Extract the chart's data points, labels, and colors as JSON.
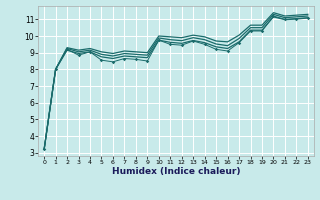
{
  "xlabel": "Humidex (Indice chaleur)",
  "bg_color": "#c8eaea",
  "grid_color": "#ffffff",
  "line_color": "#1a6b6b",
  "xlim": [
    -0.5,
    23.5
  ],
  "ylim": [
    2.8,
    11.8
  ],
  "yticks": [
    3,
    4,
    5,
    6,
    7,
    8,
    9,
    10,
    11
  ],
  "xticks": [
    0,
    1,
    2,
    3,
    4,
    5,
    6,
    7,
    8,
    9,
    10,
    11,
    12,
    13,
    14,
    15,
    16,
    17,
    18,
    19,
    20,
    21,
    22,
    23
  ],
  "jagged_x": [
    0,
    1,
    2,
    3,
    4,
    5,
    6,
    7,
    8,
    9,
    10,
    11,
    12,
    13,
    14,
    15,
    16,
    17,
    18,
    19,
    20,
    21,
    22,
    23
  ],
  "jagged_y": [
    3.2,
    8.0,
    9.2,
    8.85,
    9.05,
    8.55,
    8.45,
    8.65,
    8.6,
    8.5,
    9.75,
    9.5,
    9.45,
    9.7,
    9.5,
    9.2,
    9.1,
    9.6,
    10.3,
    10.3,
    11.2,
    11.0,
    11.05,
    11.1
  ],
  "smooth_upper_x": [
    0,
    1,
    2,
    3,
    4,
    5,
    6,
    7,
    8,
    9,
    10,
    11,
    12,
    13,
    14,
    15,
    16,
    17,
    18,
    19,
    20,
    21,
    22,
    23
  ],
  "smooth_upper_y": [
    3.2,
    8.0,
    9.3,
    9.15,
    9.25,
    9.05,
    8.95,
    9.1,
    9.05,
    9.0,
    10.0,
    9.95,
    9.9,
    10.05,
    9.95,
    9.7,
    9.65,
    10.05,
    10.65,
    10.65,
    11.4,
    11.2,
    11.25,
    11.3
  ],
  "smooth_mid_x": [
    0,
    1,
    2,
    3,
    4,
    5,
    6,
    7,
    8,
    9,
    10,
    11,
    12,
    13,
    14,
    15,
    16,
    17,
    18,
    19,
    20,
    21,
    22,
    23
  ],
  "smooth_mid_y": [
    3.2,
    8.0,
    9.25,
    9.05,
    9.15,
    8.9,
    8.8,
    8.95,
    8.9,
    8.85,
    9.88,
    9.78,
    9.72,
    9.9,
    9.78,
    9.52,
    9.42,
    9.85,
    10.5,
    10.5,
    11.3,
    11.1,
    11.15,
    11.2
  ],
  "smooth_lower_x": [
    0,
    1,
    2,
    3,
    4,
    5,
    6,
    7,
    8,
    9,
    10,
    11,
    12,
    13,
    14,
    15,
    16,
    17,
    18,
    19,
    20,
    21,
    22,
    23
  ],
  "smooth_lower_y": [
    3.2,
    8.0,
    9.15,
    8.95,
    9.05,
    8.75,
    8.65,
    8.8,
    8.75,
    8.7,
    9.75,
    9.62,
    9.56,
    9.73,
    9.6,
    9.35,
    9.25,
    9.65,
    10.35,
    10.35,
    11.15,
    10.98,
    11.02,
    11.08
  ]
}
